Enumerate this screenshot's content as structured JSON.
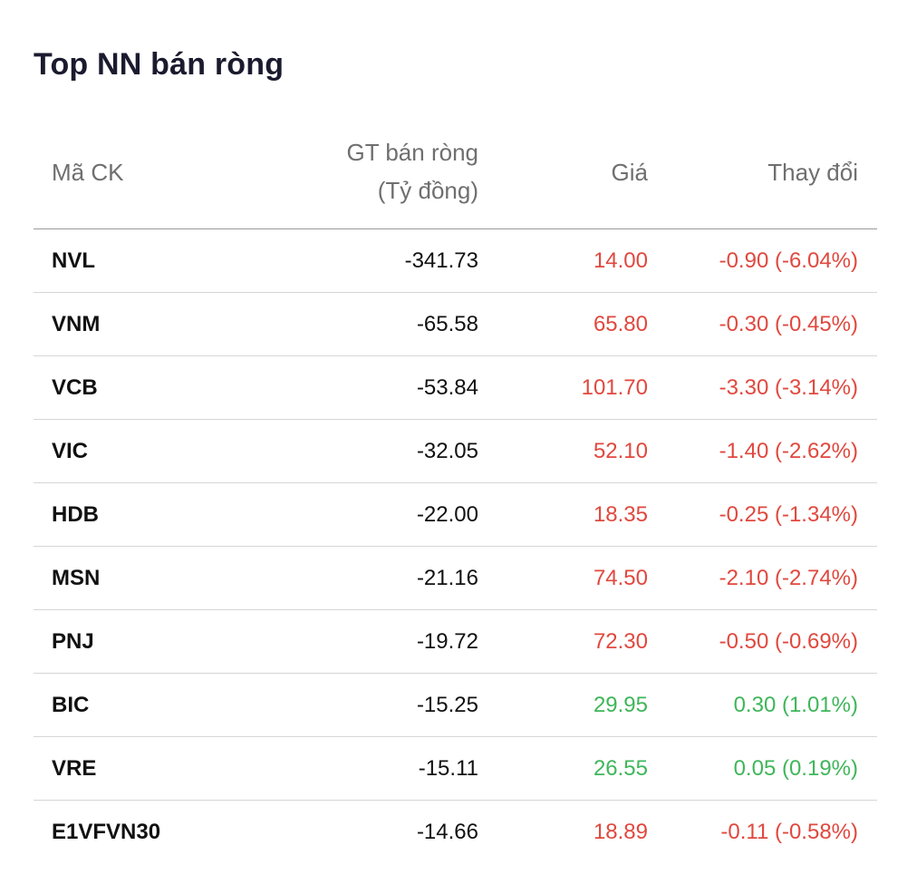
{
  "title": "Top NN bán ròng",
  "colors": {
    "down": "#e0483e",
    "up": "#3fb65a",
    "header_text": "#6f6f6f"
  },
  "columns": {
    "code": "Mã CK",
    "value_line1": "GT bán ròng",
    "value_line2": "(Tỷ đồng)",
    "price": "Giá",
    "change": "Thay đổi"
  },
  "rows": [
    {
      "code": "NVL",
      "value": "-341.73",
      "price": "14.00",
      "change": "-0.90 (-6.04%)",
      "direction": "down"
    },
    {
      "code": "VNM",
      "value": "-65.58",
      "price": "65.80",
      "change": "-0.30 (-0.45%)",
      "direction": "down"
    },
    {
      "code": "VCB",
      "value": "-53.84",
      "price": "101.70",
      "change": "-3.30 (-3.14%)",
      "direction": "down"
    },
    {
      "code": "VIC",
      "value": "-32.05",
      "price": "52.10",
      "change": "-1.40 (-2.62%)",
      "direction": "down"
    },
    {
      "code": "HDB",
      "value": "-22.00",
      "price": "18.35",
      "change": "-0.25 (-1.34%)",
      "direction": "down"
    },
    {
      "code": "MSN",
      "value": "-21.16",
      "price": "74.50",
      "change": "-2.10 (-2.74%)",
      "direction": "down"
    },
    {
      "code": "PNJ",
      "value": "-19.72",
      "price": "72.30",
      "change": "-0.50 (-0.69%)",
      "direction": "down"
    },
    {
      "code": "BIC",
      "value": "-15.25",
      "price": "29.95",
      "change": "0.30 (1.01%)",
      "direction": "up"
    },
    {
      "code": "VRE",
      "value": "-15.11",
      "price": "26.55",
      "change": "0.05 (0.19%)",
      "direction": "up"
    },
    {
      "code": "E1VFVN30",
      "value": "-14.66",
      "price": "18.89",
      "change": "-0.11 (-0.58%)",
      "direction": "down"
    }
  ]
}
